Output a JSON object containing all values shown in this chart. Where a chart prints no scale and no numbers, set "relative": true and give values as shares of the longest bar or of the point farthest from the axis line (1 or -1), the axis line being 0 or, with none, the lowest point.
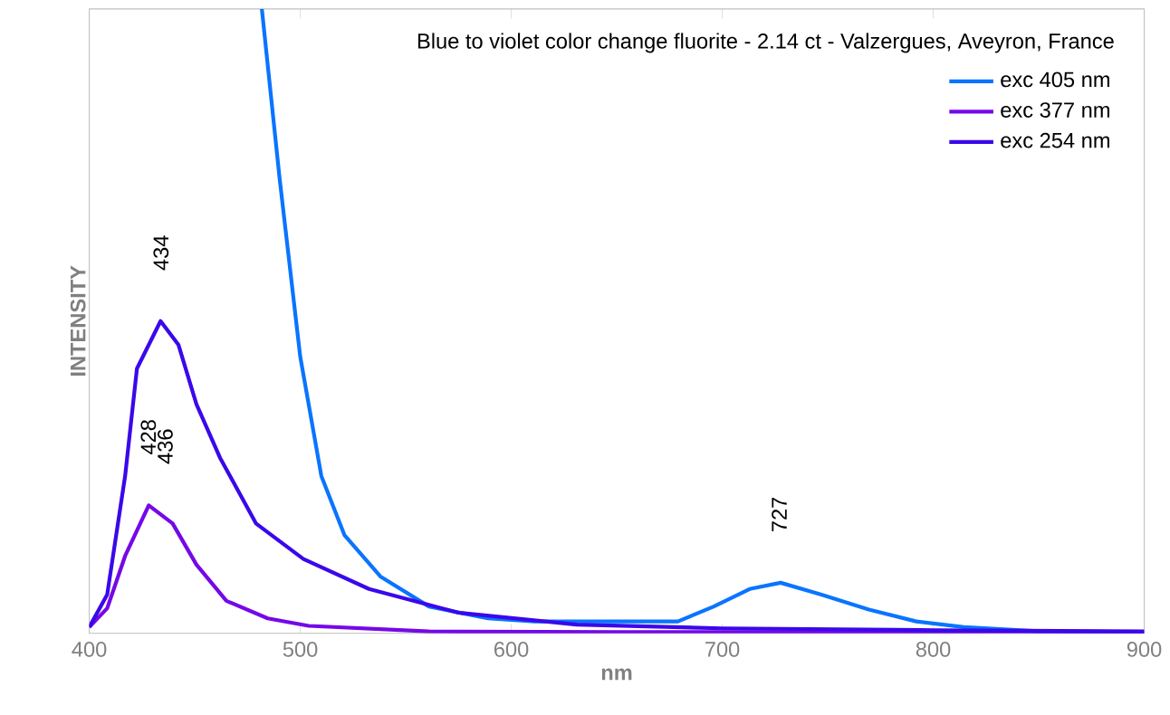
{
  "chart_data": {
    "type": "line",
    "title": "Blue to violet color change fluorite - 2.14 ct - Valzergues, Aveyron, France",
    "xlabel": "nm",
    "ylabel": "INTENSITY",
    "relative": true,
    "xlim": [
      400,
      900
    ],
    "xticks": [
      400,
      500,
      600,
      700,
      800,
      900
    ],
    "legend": "top right",
    "grid": false,
    "marker": "none",
    "line_style": "solid",
    "series": [
      {
        "name": "exc 405 nm",
        "color": "#0a74ff",
        "x": [
          481.8,
          490.2,
          500,
          510,
          521,
          538,
          561,
          589,
          611,
          679,
          696,
          713,
          727.7,
          747,
          769.5,
          792,
          814.5,
          851,
          900
        ],
        "values": [
          1,
          0.729,
          0.443,
          0.252,
          0.157,
          0.091,
          0.043,
          0.024,
          0.019,
          0.019,
          0.043,
          0.071,
          0.081,
          0.062,
          0.038,
          0.019,
          0.01,
          0.003,
          0.002
        ]
      },
      {
        "name": "exc 377 nm",
        "color": "#7508e8",
        "x": [
          400,
          408.5,
          417,
          428.2,
          439.5,
          450.8,
          465,
          484.6,
          504,
          561,
          650,
          750,
          900
        ],
        "values": [
          0.01,
          0.04,
          0.124,
          0.205,
          0.176,
          0.11,
          0.052,
          0.024,
          0.012,
          0.003,
          0.002,
          0.002,
          0.002
        ]
      },
      {
        "name": "exc 254 nm",
        "color": "#3a08ea",
        "x": [
          400,
          408.5,
          417,
          422.6,
          433.8,
          442.3,
          450.8,
          462,
          479,
          501.5,
          532.6,
          575,
          631,
          700,
          800,
          900
        ],
        "values": [
          0.01,
          0.062,
          0.252,
          0.424,
          0.5,
          0.462,
          0.367,
          0.281,
          0.176,
          0.119,
          0.071,
          0.033,
          0.014,
          0.008,
          0.005,
          0.003
        ]
      }
    ],
    "annotations": [
      {
        "text": "434",
        "x": 434,
        "y": 0.5
      },
      {
        "text": "428",
        "x": 428,
        "y": 0.205
      },
      {
        "text": "436",
        "x": 436,
        "y": 0.19
      },
      {
        "text": "727",
        "x": 727,
        "y": 0.081
      }
    ]
  }
}
